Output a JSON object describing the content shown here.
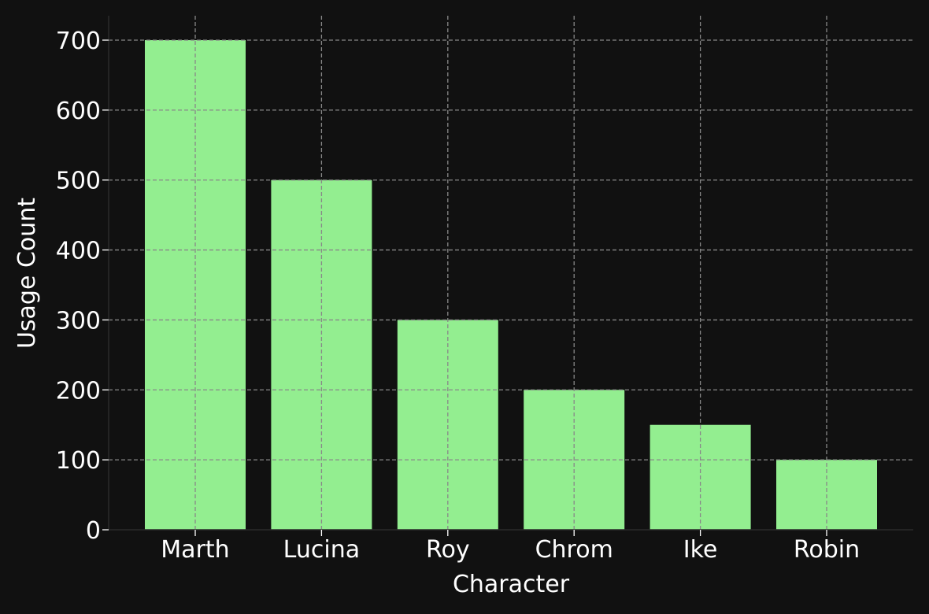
{
  "chart_data": {
    "type": "bar",
    "categories": [
      "Marth",
      "Lucina",
      "Roy",
      "Chrom",
      "Ike",
      "Robin"
    ],
    "values": [
      700,
      500,
      300,
      200,
      150,
      100
    ],
    "title": "",
    "xlabel": "Character",
    "ylabel": "Usage Count",
    "ylim": [
      0,
      700
    ],
    "yticks": [
      0,
      100,
      200,
      300,
      400,
      500,
      600,
      700
    ],
    "grid": true,
    "legend": "none"
  },
  "colors": {
    "background": "#111111",
    "bar": "#93ee90",
    "grid": "#888888",
    "axis": "#2a2a2a",
    "text": "#ffffff"
  }
}
